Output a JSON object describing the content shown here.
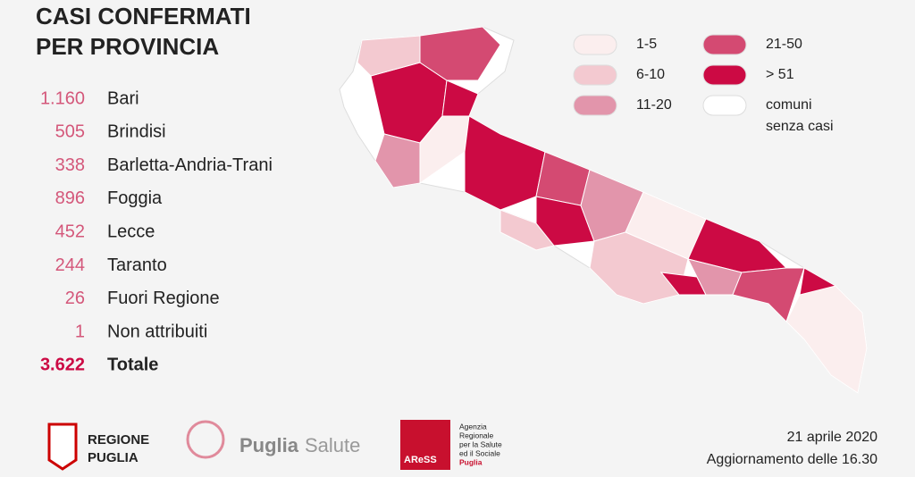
{
  "header": {
    "title_lines": [
      "CASI CONFERMATI",
      "PER PROVINCIA"
    ]
  },
  "table": {
    "rows": [
      [
        "1.160",
        "Bari"
      ],
      [
        "505",
        "Brindisi"
      ],
      [
        "338",
        "Barletta-Andria-Trani"
      ],
      [
        "896",
        "Foggia"
      ],
      [
        "452",
        "Lecce"
      ],
      [
        "244",
        "Taranto"
      ],
      [
        "26",
        "Fuori Regione"
      ],
      [
        "1",
        "Non attribuiti"
      ],
      [
        "3.622",
        "Totale"
      ]
    ]
  },
  "legend": {
    "items": [
      {
        "label": "1-5",
        "color": "#fbeeee"
      },
      {
        "label": "6-10",
        "color": "#f3c9d0"
      },
      {
        "label": "11-20",
        "color": "#e295ab"
      },
      {
        "label": "21-50",
        "color": "#d44a72"
      },
      {
        "label": "> 51",
        "color": "#cc0a44"
      },
      {
        "label": [
          "comuni",
          "senza casi"
        ],
        "color": "#ffffff"
      }
    ]
  },
  "footer": {
    "regione": [
      "REGIONE",
      "PUGLIA"
    ],
    "puglia_salute": [
      "Puglia",
      "Salute"
    ],
    "aress": "AReSS",
    "aress_desc": [
      "Agenzia",
      "Regionale",
      "per la Salute",
      "ed il Sociale",
      "Puglia"
    ],
    "date": "21 aprile 2020",
    "update": "Aggiornamento delle 16.30"
  }
}
